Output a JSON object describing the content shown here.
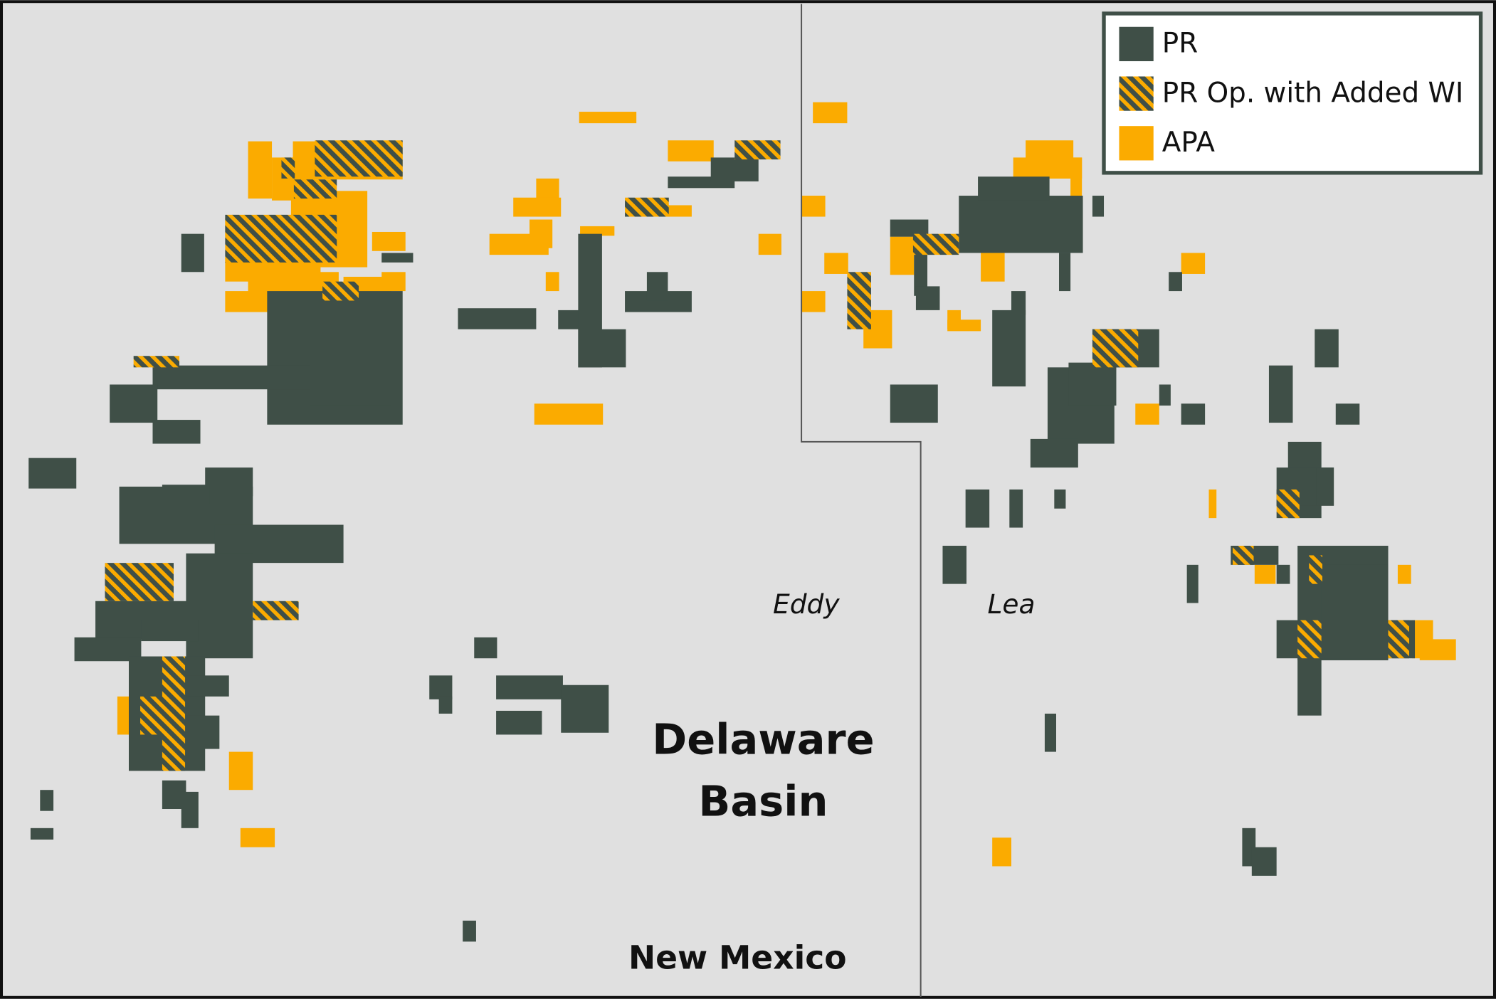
{
  "legend": {
    "items": [
      {
        "label": "PR"
      },
      {
        "label": "PR Op. with Added WI"
      },
      {
        "label": "APA"
      }
    ]
  },
  "labels": {
    "county_west": "Eddy",
    "county_east": "Lea",
    "basin": [
      "Delaware",
      "Basin"
    ],
    "state": "New Mexico"
  }
}
